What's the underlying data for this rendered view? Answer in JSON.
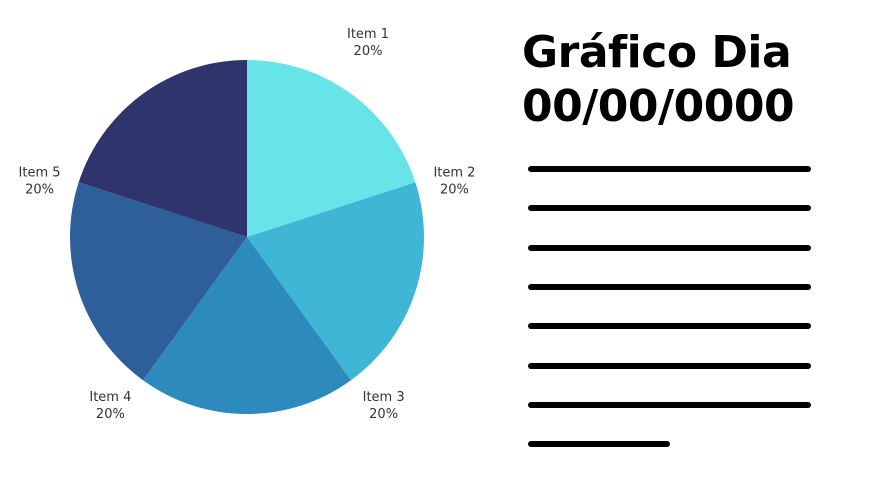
{
  "chart_data": {
    "type": "pie",
    "title": "",
    "labels": [
      "Item 1",
      "Item 2",
      "Item 3",
      "Item 4",
      "Item 5"
    ],
    "values": [
      20,
      20,
      20,
      20,
      20
    ],
    "value_labels": [
      "20%",
      "20%",
      "20%",
      "20%",
      "20%"
    ],
    "colors": [
      "#67E4E8",
      "#40B6D6",
      "#2C8ABC",
      "#2E5F9A",
      "#30346C"
    ],
    "start_angle": "12 o'clock",
    "direction": "clockwise",
    "legend": "none"
  },
  "header": {
    "title_line1": "Gráfico Dia",
    "title_line2": "00/00/0000"
  },
  "placeholder_lines": {
    "count": 8,
    "last_line_fraction": 0.5
  }
}
